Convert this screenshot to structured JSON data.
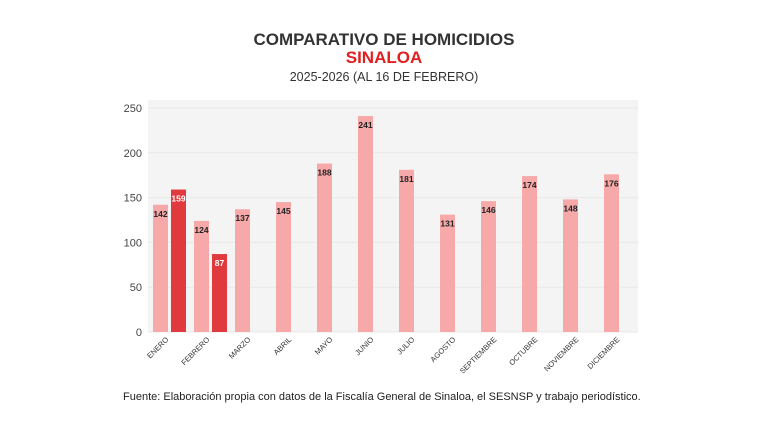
{
  "chart_data": {
    "type": "bar",
    "title": "COMPARATIVO DE HOMICIDIOS",
    "subtitle": "SINALOA",
    "period": "2025-2026 (AL 16 DE FEBRERO)",
    "categories": [
      "ENERO",
      "FEBRERO",
      "MARZO",
      "ABRIL",
      "MAYO",
      "JUNIO",
      "JULIO",
      "AGOSTO",
      "SEPTIEMBRE",
      "OCTUBRE",
      "NOVIEMBRE",
      "DICIEMBRE"
    ],
    "series": [
      {
        "values": [
          142,
          124,
          137,
          145,
          188,
          241,
          181,
          131,
          146,
          174,
          148,
          176
        ],
        "color": "#f7a8a8"
      },
      {
        "values": [
          159,
          87,
          null,
          null,
          null,
          null,
          null,
          null,
          null,
          null,
          null,
          null
        ],
        "color": "#e0393e"
      }
    ],
    "ylim": [
      0,
      250
    ],
    "yticks": [
      0,
      50,
      100,
      150,
      200,
      250
    ],
    "grid": true,
    "legend": "none",
    "data_labels": true
  },
  "source": "Fuente: Elaboración propia con datos de la Fiscalía General de Sinaloa, el SESNSP y trabajo periodístico."
}
